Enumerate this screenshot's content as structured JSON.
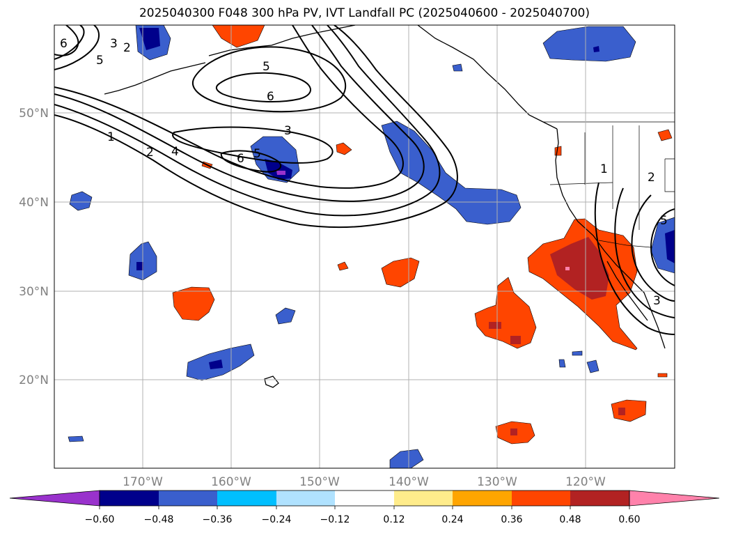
{
  "title": "2025040300 F048 300 hPa PV, IVT Landfall PC (2025040600 - 2025040700)",
  "axes": {
    "lon_labels": [
      "170°W",
      "160°W",
      "150°W",
      "140°W",
      "130°W",
      "120°W"
    ],
    "lat_labels": [
      "50°N",
      "40°N",
      "30°N",
      "20°N"
    ],
    "label_color": "#808080",
    "grid": true
  },
  "colorbar": {
    "ticks": [
      "−0.60",
      "−0.48",
      "−0.36",
      "−0.24",
      "−0.12",
      "0.12",
      "0.24",
      "0.36",
      "0.48",
      "0.60"
    ],
    "colors": [
      "#9932cc",
      "#00008b",
      "#3a5fcd",
      "#00bfff",
      "#b0e2ff",
      "#ffffff",
      "#ffec8b",
      "#ffa500",
      "#ff4500",
      "#b22222",
      "#ff82ab"
    ],
    "extend": "both"
  },
  "contour_labels": [
    "6",
    "3",
    "2",
    "5",
    "5",
    "6",
    "3",
    "1",
    "2",
    "4",
    "6",
    "5",
    "1",
    "2",
    "5",
    "3"
  ],
  "colors": {
    "strong_negative": "#00008b",
    "negative": "#3a5fcd",
    "weak_negative": "#00bfff",
    "weak_positive": "#ffec8b",
    "positive": "#ff4500",
    "strong_positive": "#b22222",
    "max_positive": "#ff82ab",
    "min_negative": "#9932cc"
  }
}
